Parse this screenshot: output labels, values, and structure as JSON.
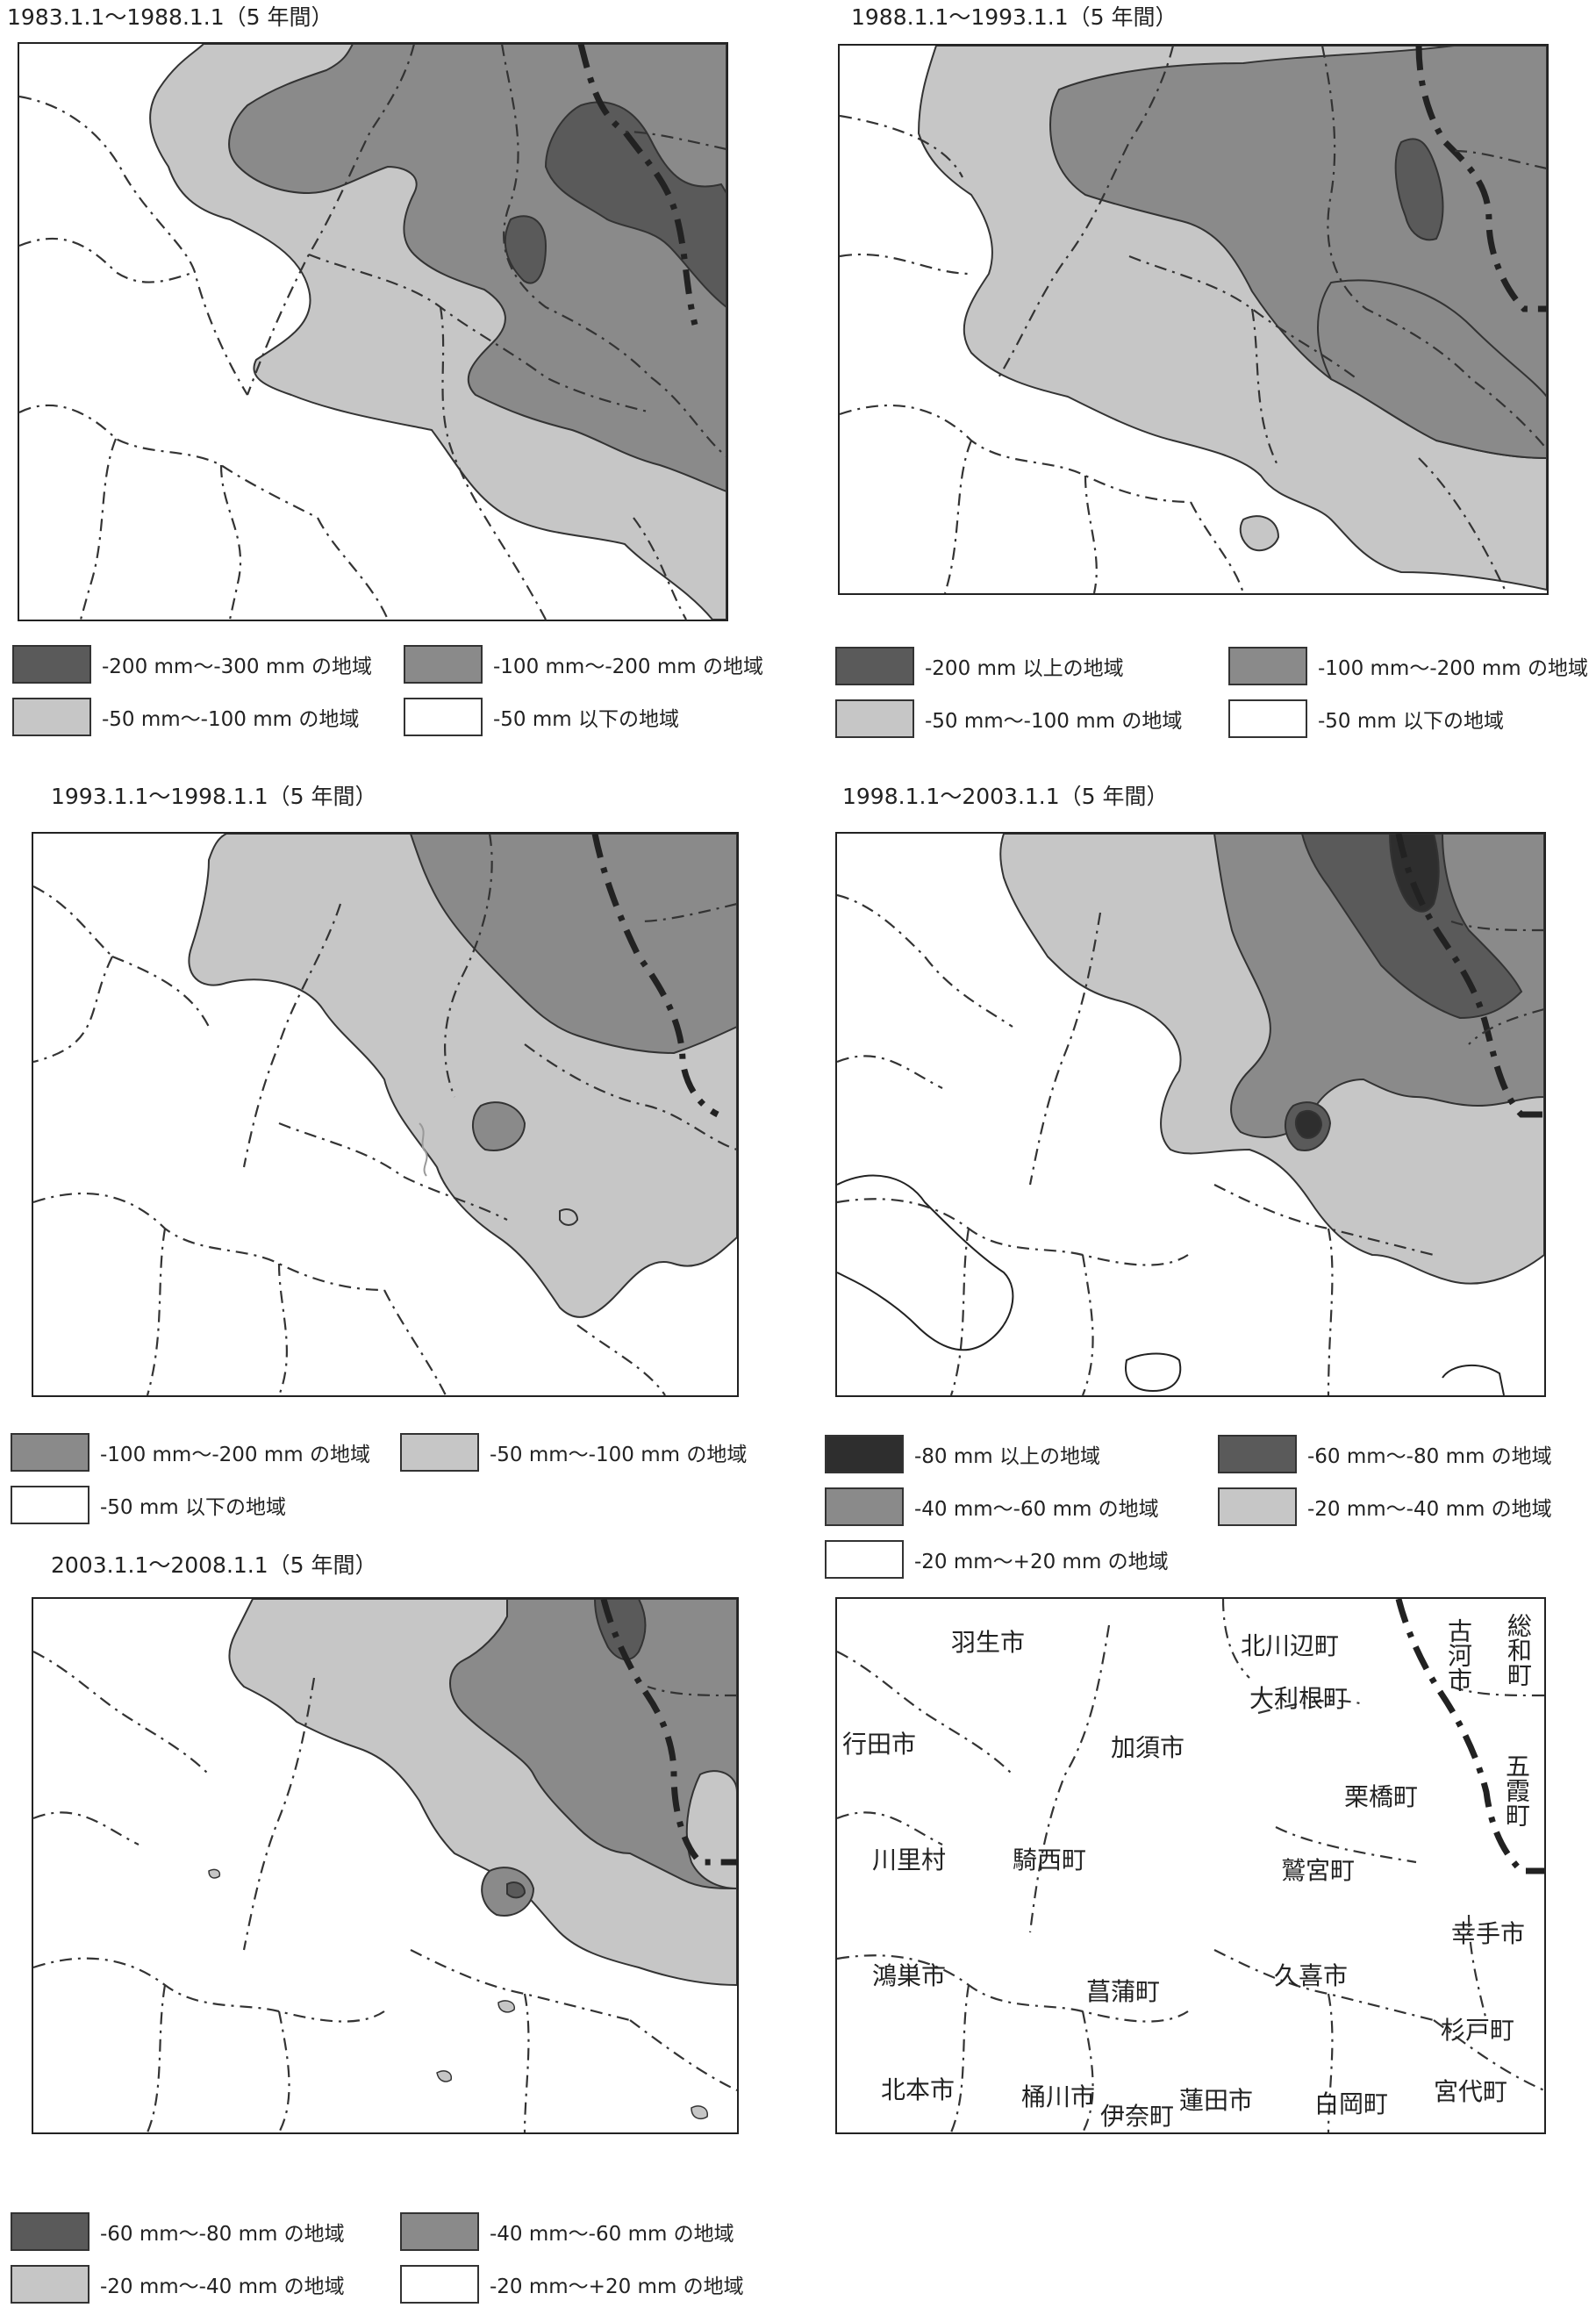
{
  "colors": {
    "lighter": "#c6c6c6",
    "mid": "#8a8a8a",
    "dark": "#5a5a5a",
    "darkest": "#2e2e2e",
    "white": "#ffffff",
    "boundary_line": "#222222"
  },
  "panels": [
    {
      "title": "1983.1.1～1988.1.1（5 年間）",
      "legend": [
        {
          "label": "-200 mm～-300 mm の地域",
          "color": "#5a5a5a"
        },
        {
          "label": "-100 mm～-200 mm の地域",
          "color": "#8a8a8a"
        },
        {
          "label": "-50 mm～-100 mm の地域",
          "color": "#c6c6c6"
        },
        {
          "label": "-50 mm 以下の地域",
          "color": "#ffffff"
        }
      ]
    },
    {
      "title": "1988.1.1～1993.1.1（5 年間）",
      "legend": [
        {
          "label": "-200 mm 以上の地域",
          "color": "#5a5a5a"
        },
        {
          "label": "-100 mm～-200 mm の地域",
          "color": "#8a8a8a"
        },
        {
          "label": "-50 mm～-100 mm の地域",
          "color": "#c6c6c6"
        },
        {
          "label": "-50 mm 以下の地域",
          "color": "#ffffff"
        }
      ]
    },
    {
      "title": "1993.1.1～1998.1.1（5 年間）",
      "legend": [
        {
          "label": "-100 mm～-200 mm の地域",
          "color": "#8a8a8a"
        },
        {
          "label": "-50 mm～-100 mm の地域",
          "color": "#c6c6c6"
        },
        {
          "label": "-50 mm 以下の地域",
          "color": "#ffffff"
        }
      ]
    },
    {
      "title": "1998.1.1～2003.1.1（5 年間）",
      "legend": [
        {
          "label": "-80 mm 以上の地域",
          "color": "#2e2e2e"
        },
        {
          "label": "-60 mm～-80 mm の地域",
          "color": "#5a5a5a"
        },
        {
          "label": "-40 mm～-60 mm の地域",
          "color": "#8a8a8a"
        },
        {
          "label": "-20 mm～-40 mm の地域",
          "color": "#c6c6c6"
        },
        {
          "label": "-20 mm～+20 mm の地域",
          "color": "#ffffff"
        }
      ]
    },
    {
      "title": "2003.1.1～2008.1.1（5 年間）",
      "legend": [
        {
          "label": "-60 mm～-80 mm の地域",
          "color": "#5a5a5a"
        },
        {
          "label": "-40 mm～-60 mm の地域",
          "color": "#8a8a8a"
        },
        {
          "label": "-20 mm～-40 mm の地域",
          "color": "#c6c6c6"
        },
        {
          "label": "-20 mm～+20 mm の地域",
          "color": "#ffffff"
        }
      ]
    }
  ],
  "reference_map": {
    "places": [
      "羽生市",
      "北川辺町",
      "古河市",
      "総和町",
      "大利根町",
      "行田市",
      "加須市",
      "栗橋町",
      "五霞町",
      "川里村",
      "騎西町",
      "鷲宮町",
      "幸手市",
      "鴻巣市",
      "菖蒲町",
      "久喜市",
      "杉戸町",
      "北本市",
      "桶川市",
      "伊奈町",
      "蓮田市",
      "白岡町",
      "宮代町"
    ]
  }
}
